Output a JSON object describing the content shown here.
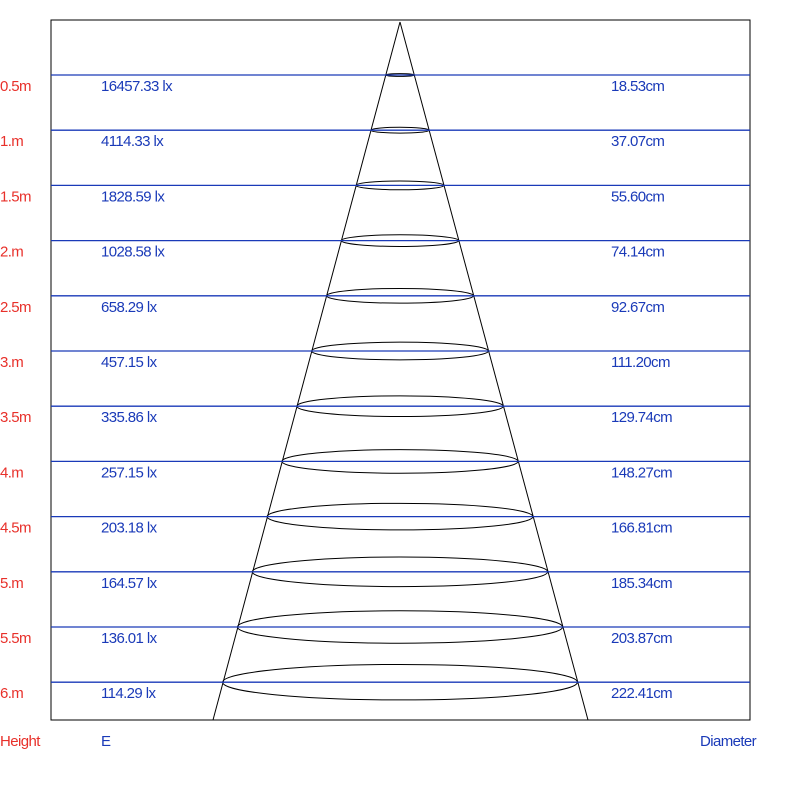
{
  "rows": [
    {
      "height": "0.5m",
      "illuminance": "16457.33 lx",
      "diameter": "18.53cm"
    },
    {
      "height": "1.m",
      "illuminance": "4114.33 lx",
      "diameter": "37.07cm"
    },
    {
      "height": "1.5m",
      "illuminance": "1828.59 lx",
      "diameter": "55.60cm"
    },
    {
      "height": "2.m",
      "illuminance": "1028.58 lx",
      "diameter": "74.14cm"
    },
    {
      "height": "2.5m",
      "illuminance": "658.29 lx",
      "diameter": "92.67cm"
    },
    {
      "height": "3.m",
      "illuminance": "457.15 lx",
      "diameter": "111.20cm"
    },
    {
      "height": "3.5m",
      "illuminance": "335.86 lx",
      "diameter": "129.74cm"
    },
    {
      "height": "4.m",
      "illuminance": "257.15 lx",
      "diameter": "148.27cm"
    },
    {
      "height": "4.5m",
      "illuminance": "203.18 lx",
      "diameter": "166.81cm"
    },
    {
      "height": "5.m",
      "illuminance": "164.57 lx",
      "diameter": "185.34cm"
    },
    {
      "height": "5.5m",
      "illuminance": "136.01 lx",
      "diameter": "203.87cm"
    },
    {
      "height": "6.m",
      "illuminance": "114.29 lx",
      "diameter": "222.41cm"
    }
  ],
  "footer": {
    "height": "Height",
    "illuminance": "E",
    "diameter": "Diameter"
  }
}
